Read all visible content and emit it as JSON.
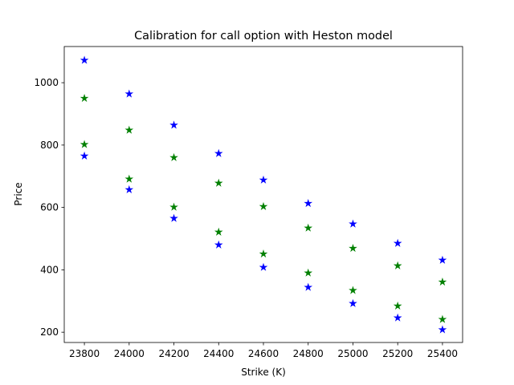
{
  "chart_data": {
    "type": "scatter",
    "title": "Calibration for call option with Heston model",
    "xlabel": "Strike (K)",
    "ylabel": "Price",
    "xlim": [
      23710,
      25490
    ],
    "ylim": [
      167,
      1116
    ],
    "xticks": [
      23800,
      24000,
      24200,
      24400,
      24600,
      24800,
      25000,
      25200,
      25400
    ],
    "yticks": [
      200,
      400,
      600,
      800,
      1000
    ],
    "grid": false,
    "marker": "star",
    "series": [
      {
        "color": "#0000ff",
        "points": [
          [
            23800,
            1072
          ],
          [
            24000,
            964
          ],
          [
            24200,
            864
          ],
          [
            24400,
            773
          ],
          [
            24600,
            688
          ],
          [
            24800,
            613
          ],
          [
            25000,
            547
          ],
          [
            25200,
            485
          ],
          [
            25400,
            431
          ]
        ]
      },
      {
        "color": "#008000",
        "points": [
          [
            23800,
            950
          ],
          [
            24000,
            848
          ],
          [
            24200,
            760
          ],
          [
            24400,
            678
          ],
          [
            24600,
            603
          ],
          [
            24800,
            534
          ],
          [
            25000,
            469
          ],
          [
            25200,
            413
          ],
          [
            25400,
            361
          ]
        ]
      },
      {
        "color": "#008000",
        "points": [
          [
            23800,
            802
          ],
          [
            24000,
            691
          ],
          [
            24200,
            601
          ],
          [
            24400,
            521
          ],
          [
            24600,
            451
          ],
          [
            24800,
            390
          ],
          [
            25000,
            334
          ],
          [
            25200,
            284
          ],
          [
            25400,
            241
          ]
        ]
      },
      {
        "color": "#0000ff",
        "points": [
          [
            23800,
            765
          ],
          [
            24000,
            657
          ],
          [
            24200,
            565
          ],
          [
            24400,
            480
          ],
          [
            24600,
            408
          ],
          [
            24800,
            344
          ],
          [
            25000,
            292
          ],
          [
            25200,
            246
          ],
          [
            25400,
            208
          ]
        ]
      }
    ]
  }
}
